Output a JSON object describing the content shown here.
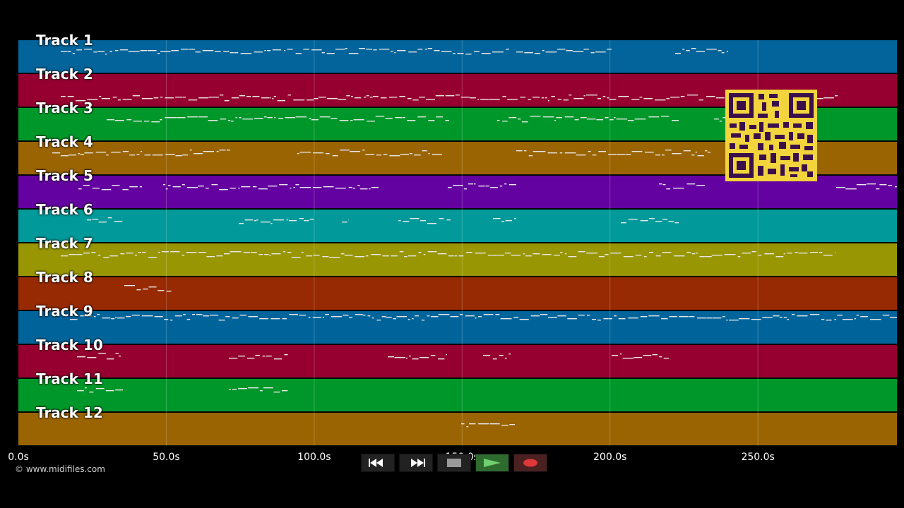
{
  "colors": {
    "background": "#000000",
    "lane_colors": [
      "#02649a",
      "#960030",
      "#00972a",
      "#9a6402",
      "#6302a0",
      "#019999",
      "#989602",
      "#972a02",
      "#00649a",
      "#960030",
      "#00972a",
      "#9a6402"
    ],
    "note": "#e8e8e8",
    "qr_bg": "#f2d43c",
    "qr_fg": "#3b0f4a"
  },
  "tracks": [
    {
      "label": "Track 1"
    },
    {
      "label": "Track 2"
    },
    {
      "label": "Track 3"
    },
    {
      "label": "Track 4"
    },
    {
      "label": "Track 5"
    },
    {
      "label": "Track 6"
    },
    {
      "label": "Track 7"
    },
    {
      "label": "Track 8"
    },
    {
      "label": "Track 9"
    },
    {
      "label": "Track 10"
    },
    {
      "label": "Track 11"
    },
    {
      "label": "Track 12"
    }
  ],
  "time_axis": {
    "ticks": [
      "0.0s",
      "50.0s",
      "100.0s",
      "150.0s",
      "200.0s",
      "250.0s"
    ],
    "tick_values": [
      0,
      50,
      100,
      150,
      200,
      250
    ],
    "range": [
      0,
      297
    ]
  },
  "copyright": "© www.midifiles.com",
  "transport": {
    "rewind_icon": "rewind-icon",
    "fast_forward_icon": "fast-forward-icon",
    "stop_icon": "stop-icon",
    "play_icon": "play-icon",
    "record_icon": "record-icon"
  }
}
